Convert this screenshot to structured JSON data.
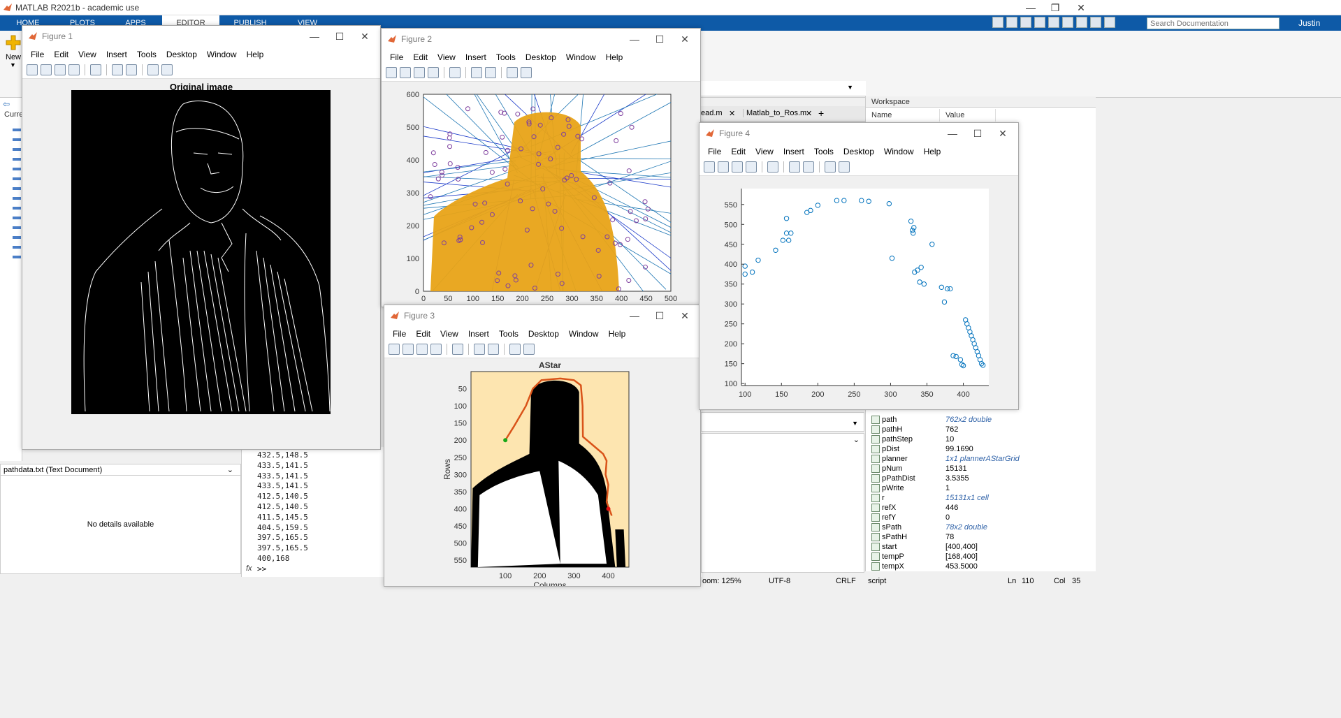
{
  "app": {
    "title": "MATLAB R2021b - academic use",
    "ribbon_tabs": [
      "HOME",
      "PLOTS",
      "APPS",
      "EDITOR",
      "PUBLISH",
      "VIEW"
    ],
    "active_tab": "EDITOR",
    "search_placeholder": "Search Documentation",
    "user": "Justin",
    "new_label": "New"
  },
  "figure_menu": [
    "File",
    "Edit",
    "View",
    "Insert",
    "Tools",
    "Desktop",
    "Window",
    "Help"
  ],
  "figures": {
    "f1": {
      "title": "Figure 1",
      "axes_title": "Original image"
    },
    "f2": {
      "title": "Figure 2",
      "xticks": [
        "0",
        "50",
        "100",
        "150",
        "200",
        "250",
        "300",
        "350",
        "400",
        "450",
        "500"
      ],
      "yticks": [
        "0",
        "100",
        "200",
        "300",
        "400",
        "500",
        "600"
      ]
    },
    "f3": {
      "title": "Figure 3",
      "axes_title": "AStar",
      "xlabel": "Columns",
      "ylabel": "Rows",
      "xticks": [
        "100",
        "200",
        "300",
        "400"
      ],
      "yticks": [
        "50",
        "100",
        "150",
        "200",
        "250",
        "300",
        "350",
        "400",
        "450",
        "500",
        "550"
      ]
    },
    "f4": {
      "title": "Figure 4",
      "xticks": [
        "100",
        "150",
        "200",
        "250",
        "300",
        "350",
        "400"
      ],
      "yticks": [
        "100",
        "150",
        "200",
        "250",
        "300",
        "350",
        "400",
        "450",
        "500",
        "550"
      ]
    }
  },
  "chart_data": [
    {
      "type": "scatter",
      "figure": "Figure 4",
      "xlim": [
        95,
        435
      ],
      "ylim": [
        95,
        590
      ],
      "points": [
        [
          100,
          395
        ],
        [
          100,
          375
        ],
        [
          110,
          380
        ],
        [
          118,
          410
        ],
        [
          142,
          435
        ],
        [
          152,
          460
        ],
        [
          157,
          515
        ],
        [
          157,
          478
        ],
        [
          160,
          460
        ],
        [
          163,
          478
        ],
        [
          185,
          530
        ],
        [
          190,
          535
        ],
        [
          200,
          548
        ],
        [
          226,
          560
        ],
        [
          236,
          560
        ],
        [
          260,
          560
        ],
        [
          270,
          558
        ],
        [
          298,
          552
        ],
        [
          302,
          415
        ],
        [
          328,
          508
        ],
        [
          330,
          485
        ],
        [
          332,
          492
        ],
        [
          331,
          478
        ],
        [
          333,
          380
        ],
        [
          337,
          385
        ],
        [
          340,
          355
        ],
        [
          342,
          392
        ],
        [
          346,
          350
        ],
        [
          357,
          450
        ],
        [
          370,
          342
        ],
        [
          374,
          305
        ],
        [
          378,
          338
        ],
        [
          382,
          338
        ],
        [
          386,
          170
        ],
        [
          390,
          168
        ],
        [
          396,
          160
        ],
        [
          398,
          148
        ],
        [
          400,
          145
        ],
        [
          403,
          260
        ],
        [
          405,
          250
        ],
        [
          407,
          240
        ],
        [
          409,
          230
        ],
        [
          411,
          220
        ],
        [
          413,
          210
        ],
        [
          415,
          200
        ],
        [
          417,
          190
        ],
        [
          419,
          180
        ],
        [
          421,
          170
        ],
        [
          423,
          160
        ],
        [
          425,
          150
        ],
        [
          427,
          146
        ]
      ],
      "color": "#0072bd"
    },
    {
      "type": "line",
      "figure": "Figure 3",
      "title": "AStar",
      "xlabel": "Columns",
      "ylabel": "Rows",
      "start": [
        100,
        200
      ],
      "goal": [
        400,
        400
      ],
      "path": [
        [
          100,
          200
        ],
        [
          125,
          160
        ],
        [
          160,
          100
        ],
        [
          180,
          50
        ],
        [
          205,
          25
        ],
        [
          260,
          20
        ],
        [
          300,
          25
        ],
        [
          320,
          40
        ],
        [
          325,
          100
        ],
        [
          326,
          190
        ],
        [
          352,
          212
        ],
        [
          385,
          240
        ],
        [
          395,
          260
        ],
        [
          392,
          300
        ],
        [
          400,
          330
        ],
        [
          395,
          380
        ],
        [
          410,
          420
        ]
      ]
    }
  ],
  "workspace": {
    "header": "Workspace",
    "col_name": "Name",
    "col_value": "Value",
    "rows": [
      {
        "name": "path",
        "value": "762x2 double",
        "link": true
      },
      {
        "name": "pathH",
        "value": "762",
        "link": false
      },
      {
        "name": "pathStep",
        "value": "10",
        "link": false
      },
      {
        "name": "pDist",
        "value": "99.1690",
        "link": false
      },
      {
        "name": "planner",
        "value": "1x1 plannerAStarGrid",
        "link": true
      },
      {
        "name": "pNum",
        "value": "15131",
        "link": false
      },
      {
        "name": "pPathDist",
        "value": "3.5355",
        "link": false
      },
      {
        "name": "pWrite",
        "value": "1",
        "link": false
      },
      {
        "name": "r",
        "value": "15131x1 cell",
        "link": true
      },
      {
        "name": "refX",
        "value": "446",
        "link": false
      },
      {
        "name": "refY",
        "value": "0",
        "link": false
      },
      {
        "name": "sPath",
        "value": "78x2 double",
        "link": true
      },
      {
        "name": "sPathH",
        "value": "78",
        "link": false
      },
      {
        "name": "start",
        "value": "[400,400]",
        "link": false
      },
      {
        "name": "tempP",
        "value": "[168,400]",
        "link": false
      },
      {
        "name": "tempX",
        "value": "453.5000",
        "link": false
      }
    ]
  },
  "editor_tabs": [
    "ead.m",
    "Matlab_to_Ros.m"
  ],
  "command_output": [
    "432.5,148.5",
    "433.5,141.5",
    "433.5,141.5",
    "433.5,141.5",
    "412.5,140.5",
    "412.5,140.5",
    "411.5,145.5",
    "404.5,159.5",
    "397.5,165.5",
    "397.5,165.5",
    "400,168"
  ],
  "prompt": ">>",
  "details": {
    "title": "pathdata.txt  (Text Document)",
    "message": "No details available"
  },
  "status": {
    "zoom": "oom: 125%",
    "encoding": "UTF-8",
    "eol": "CRLF",
    "type": "script",
    "ln_label": "Ln",
    "ln": "110",
    "col_label": "Col",
    "col": "35"
  },
  "current_folder_label": "Curre"
}
